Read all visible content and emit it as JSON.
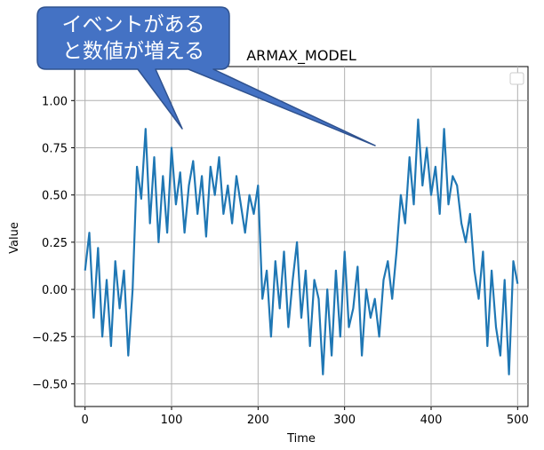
{
  "chart_data": {
    "type": "line",
    "title": "ARMAX_MODEL",
    "xlabel": "Time",
    "ylabel": "Value",
    "xlim": [
      -12,
      512
    ],
    "ylim": [
      -0.62,
      1.18
    ],
    "xticks": [
      0,
      100,
      200,
      300,
      400,
      500
    ],
    "xtick_labels": [
      "0",
      "100",
      "200",
      "300",
      "400",
      "500"
    ],
    "yticks": [
      -0.5,
      -0.25,
      0.0,
      0.25,
      0.5,
      0.75,
      1.0
    ],
    "ytick_labels": [
      "−0.50",
      "−0.25",
      "0.00",
      "0.25",
      "0.50",
      "0.75",
      "1.00"
    ],
    "grid": true,
    "legend": "upper-right, empty",
    "series": [
      {
        "color": "#1f77b4",
        "x": [
          0,
          5,
          10,
          15,
          20,
          25,
          30,
          35,
          40,
          45,
          50,
          55,
          60,
          65,
          70,
          75,
          80,
          85,
          90,
          95,
          100,
          105,
          110,
          115,
          120,
          125,
          130,
          135,
          140,
          145,
          150,
          155,
          160,
          165,
          170,
          175,
          180,
          185,
          190,
          195,
          200,
          205,
          210,
          215,
          220,
          225,
          230,
          235,
          240,
          245,
          250,
          255,
          260,
          265,
          270,
          275,
          280,
          285,
          290,
          295,
          300,
          305,
          310,
          315,
          320,
          325,
          330,
          335,
          340,
          345,
          350,
          355,
          360,
          365,
          370,
          375,
          380,
          385,
          390,
          395,
          400,
          405,
          410,
          415,
          420,
          425,
          430,
          435,
          440,
          445,
          450,
          455,
          460,
          465,
          470,
          475,
          480,
          485,
          490,
          495,
          500
        ],
        "values": [
          0.1,
          0.3,
          -0.15,
          0.22,
          -0.25,
          0.05,
          -0.3,
          0.15,
          -0.1,
          0.1,
          -0.35,
          0.0,
          0.65,
          0.48,
          0.85,
          0.35,
          0.7,
          0.25,
          0.6,
          0.3,
          0.75,
          0.45,
          0.62,
          0.3,
          0.55,
          0.68,
          0.4,
          0.6,
          0.28,
          0.65,
          0.5,
          0.7,
          0.4,
          0.55,
          0.35,
          0.6,
          0.45,
          0.3,
          0.5,
          0.4,
          0.55,
          -0.05,
          0.1,
          -0.25,
          0.15,
          -0.1,
          0.2,
          -0.2,
          0.05,
          0.25,
          -0.15,
          0.1,
          -0.3,
          0.05,
          -0.05,
          -0.45,
          0.0,
          -0.35,
          0.1,
          -0.25,
          0.2,
          -0.2,
          -0.1,
          0.12,
          -0.35,
          0.0,
          -0.15,
          -0.05,
          -0.25,
          0.05,
          0.15,
          -0.05,
          0.2,
          0.5,
          0.35,
          0.7,
          0.45,
          0.9,
          0.55,
          0.75,
          0.5,
          0.65,
          0.4,
          0.85,
          0.45,
          0.6,
          0.55,
          0.35,
          0.25,
          0.4,
          0.1,
          -0.05,
          0.2,
          -0.3,
          0.1,
          -0.2,
          -0.35,
          0.05,
          -0.45,
          0.15,
          0.03
        ]
      }
    ]
  },
  "callout": {
    "line1": "イベントがある",
    "line2": "と数値が増える",
    "fill": "#4472c4",
    "border": "#2f528f"
  }
}
